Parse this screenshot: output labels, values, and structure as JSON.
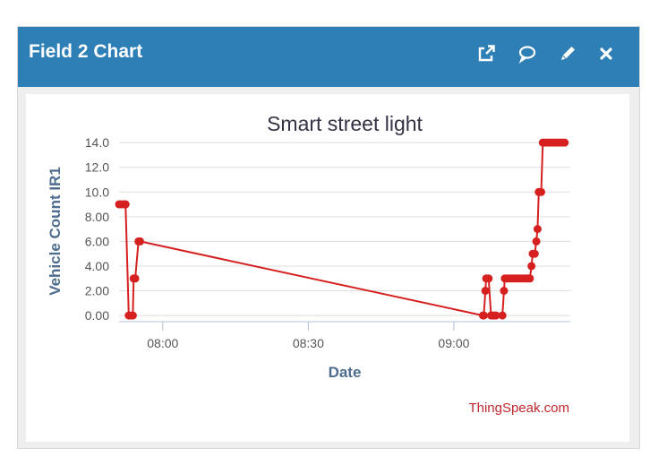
{
  "panel": {
    "title": "Field 2 Chart",
    "icons": [
      "external-link-icon",
      "comment-icon",
      "pencil-icon",
      "close-icon"
    ],
    "header_color": "#2d7fb6"
  },
  "chart_data": {
    "type": "line",
    "title": "Smart street light",
    "xlabel": "Date",
    "ylabel": "Vehicle Count IR1",
    "credit": "ThingSpeak.com",
    "x_ticks": [
      "08:00",
      "08:30",
      "09:00"
    ],
    "y_ticks": [
      "0.00",
      "2.00",
      "4.00",
      "6.00",
      "8.00",
      "10.0",
      "12.0",
      "14.0"
    ],
    "xlim": [
      "07:51",
      "09:24"
    ],
    "ylim": [
      -0.5,
      14.3
    ],
    "grid": true,
    "color": "#d62020",
    "series": [
      {
        "points": [
          [
            "07:51:00",
            9
          ],
          [
            "07:51:30",
            9
          ],
          [
            "07:52:00",
            9
          ],
          [
            "07:52:20",
            9
          ],
          [
            "07:53:00",
            0
          ],
          [
            "07:53:30",
            0
          ],
          [
            "07:53:50",
            0
          ],
          [
            "07:54:00",
            3
          ],
          [
            "07:54:20",
            3
          ],
          [
            "07:55:00",
            6
          ],
          [
            "07:55:20",
            6
          ],
          [
            "09:06:00",
            0
          ],
          [
            "09:06:10",
            0
          ],
          [
            "09:06:30",
            2
          ],
          [
            "09:06:40",
            3
          ],
          [
            "09:07:10",
            3
          ],
          [
            "09:07:40",
            0
          ],
          [
            "09:08:00",
            0
          ],
          [
            "09:08:20",
            0
          ],
          [
            "09:08:40",
            0
          ],
          [
            "09:10:00",
            0
          ],
          [
            "09:10:20",
            2
          ],
          [
            "09:10:30",
            3
          ],
          [
            "09:11:00",
            3
          ],
          [
            "09:11:30",
            3
          ],
          [
            "09:12:00",
            3
          ],
          [
            "09:12:30",
            3
          ],
          [
            "09:13:00",
            3
          ],
          [
            "09:13:30",
            3
          ],
          [
            "09:14:00",
            3
          ],
          [
            "09:14:30",
            3
          ],
          [
            "09:15:00",
            3
          ],
          [
            "09:15:20",
            3
          ],
          [
            "09:15:40",
            3
          ],
          [
            "09:16:00",
            4
          ],
          [
            "09:16:15",
            5
          ],
          [
            "09:16:40",
            5
          ],
          [
            "09:17:00",
            6
          ],
          [
            "09:17:15",
            7
          ],
          [
            "09:17:30",
            10
          ],
          [
            "09:18:00",
            10
          ],
          [
            "09:18:20",
            14
          ],
          [
            "09:18:50",
            14
          ],
          [
            "09:19:20",
            14
          ],
          [
            "09:19:50",
            14
          ],
          [
            "09:20:20",
            14
          ],
          [
            "09:20:50",
            14
          ],
          [
            "09:21:20",
            14
          ],
          [
            "09:21:50",
            14
          ],
          [
            "09:22:20",
            14
          ],
          [
            "09:22:50",
            14
          ]
        ]
      }
    ]
  }
}
